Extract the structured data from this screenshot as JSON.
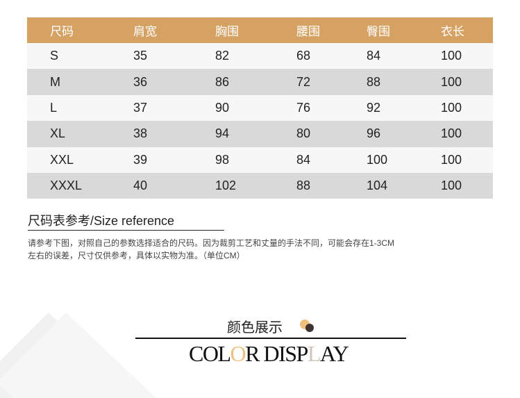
{
  "table": {
    "headers": [
      "尺码",
      "肩宽",
      "胸围",
      "腰围",
      "臀围",
      "衣长"
    ],
    "rows": [
      [
        "S",
        "35",
        "82",
        "68",
        "84",
        "100"
      ],
      [
        "M",
        "36",
        "86",
        "72",
        "88",
        "100"
      ],
      [
        "L",
        "37",
        "90",
        "76",
        "92",
        "100"
      ],
      [
        "XL",
        "38",
        "94",
        "80",
        "96",
        "100"
      ],
      [
        "XXL",
        "39",
        "98",
        "84",
        "100",
        "100"
      ],
      [
        "XXXL",
        "40",
        "102",
        "88",
        "104",
        "100"
      ]
    ]
  },
  "reference": {
    "title": "尺码表参考/Size reference",
    "note_line1": "请参考下图，对照自己的参数选择适合的尺码。因为裁剪工艺和丈量的手法不同，可能会存在1-3CM",
    "note_line2": "左右的误差，尺寸仅供参考，具体以实物为准。（单位CM）"
  },
  "color_display": {
    "title_cn": "颜色展示",
    "title_en_parts": [
      "COL",
      "O",
      "R DISP",
      "L",
      "AY"
    ],
    "colors": {
      "header": "#d6a264",
      "accent_o": "#f0c07e",
      "accent_l": "#cfc6ba",
      "dot_light": "#f0c07e",
      "dot_dark": "#3e3532"
    }
  }
}
